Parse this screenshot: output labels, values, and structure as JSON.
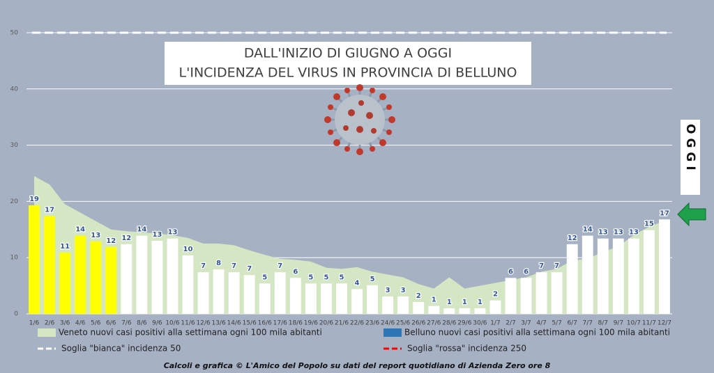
{
  "chart_data": {
    "type": "bar",
    "title": [
      "DALL'INIZIO DI GIUGNO A OGGI",
      "L'INCIDENZA DEL VIRUS IN PROVINCIA DI BELLUNO"
    ],
    "annotation": "OGGI",
    "footer": "Calcoli e grafica © L'Amico del Popolo su dati del report quotidiano di Azienda Zero ore 8",
    "categories": [
      "1/6",
      "2/6",
      "3/6",
      "4/6",
      "5/6",
      "6/6",
      "7/6",
      "8/6",
      "9/6",
      "10/6",
      "11/6",
      "12/6",
      "13/6",
      "14/6",
      "15/6",
      "16/6",
      "17/6",
      "18/6",
      "19/6",
      "20/6",
      "21/6",
      "22/6",
      "23/6",
      "24/6",
      "25/6",
      "26/6",
      "27/6",
      "28/6",
      "29/6",
      "30/6",
      "1/7",
      "2/7",
      "3/7",
      "4/7",
      "5/7",
      "6/7",
      "7/7",
      "8/7",
      "9/7",
      "10/7",
      "11/7",
      "12/7"
    ],
    "series": [
      {
        "name": "Veneto nuovi casi positivi alla settimana ogni 100 mila abitanti",
        "type": "area",
        "color": "#d4e6c3",
        "values": [
          24.5,
          23,
          19.5,
          18,
          16.5,
          15,
          14.7,
          14.5,
          14.3,
          14,
          13.5,
          12.5,
          12.5,
          12.2,
          11.3,
          10.5,
          9.8,
          9.6,
          9.3,
          8.2,
          8,
          8.3,
          7.5,
          7,
          6.5,
          5.3,
          4.5,
          6.5,
          4.5,
          5,
          5.5,
          6,
          6.5,
          7.5,
          8,
          9.5,
          9.8,
          11,
          12,
          14,
          15.5,
          16.5
        ]
      },
      {
        "name": "Belluno nuovi casi positivi alla settimana ogni 100 mila abitanti",
        "type": "bar",
        "color": "#2e75b6",
        "bar_colors": [
          "#ffff00",
          "#ffff00",
          "#ffff00",
          "#ffff00",
          "#ffff00",
          "#ffff00",
          "#ffffff",
          "#ffffff",
          "#ffffff",
          "#ffffff",
          "#ffffff",
          "#ffffff",
          "#ffffff",
          "#ffffff",
          "#ffffff",
          "#ffffff",
          "#ffffff",
          "#ffffff",
          "#ffffff",
          "#ffffff",
          "#ffffff",
          "#ffffff",
          "#ffffff",
          "#ffffff",
          "#ffffff",
          "#ffffff",
          "#ffffff",
          "#ffffff",
          "#ffffff",
          "#ffffff",
          "#ffffff",
          "#ffffff",
          "#ffffff",
          "#ffffff",
          "#ffffff",
          "#ffffff",
          "#ffffff",
          "#ffffff",
          "#ffffff",
          "#ffffff",
          "#ffffff",
          "#ffffff"
        ],
        "values": [
          19.3,
          17.4,
          10.9,
          13.9,
          12.9,
          11.9,
          12.4,
          13.9,
          13,
          13.4,
          10.4,
          7.4,
          7.9,
          7.4,
          6.9,
          5.4,
          7.4,
          6.4,
          5.4,
          5.4,
          5.4,
          4.4,
          5.1,
          3.1,
          3.1,
          2.1,
          1.4,
          1,
          1,
          1,
          2.4,
          6.4,
          6.4,
          7.4,
          7.4,
          12.4,
          13.9,
          13.4,
          13.4,
          13.4,
          14.9,
          16.8
        ],
        "value_labels": [
          "19",
          "17",
          "11",
          "14",
          "13",
          "12",
          "12",
          "14",
          "13",
          "13",
          "10",
          "7",
          "8",
          "7",
          "7",
          "5",
          "7",
          "6",
          "5",
          "5",
          "5",
          "4",
          "5",
          "3",
          "3",
          "2",
          "1",
          "1",
          "1",
          "1",
          "2",
          "6",
          "6",
          "7",
          "7",
          "12",
          "14",
          "13",
          "13",
          "13",
          "15",
          "17"
        ]
      }
    ],
    "thresholds": [
      {
        "name": "Soglia \"bianca\" incidenza 50",
        "color": "#ffffff",
        "value": 50
      },
      {
        "name": "Soglia \"rossa\" incidenza 250",
        "color": "#ff0000",
        "value": 250
      }
    ],
    "ylim": [
      0,
      50
    ],
    "yticks": [
      0,
      10,
      20,
      30,
      40,
      50
    ],
    "grid": true
  }
}
